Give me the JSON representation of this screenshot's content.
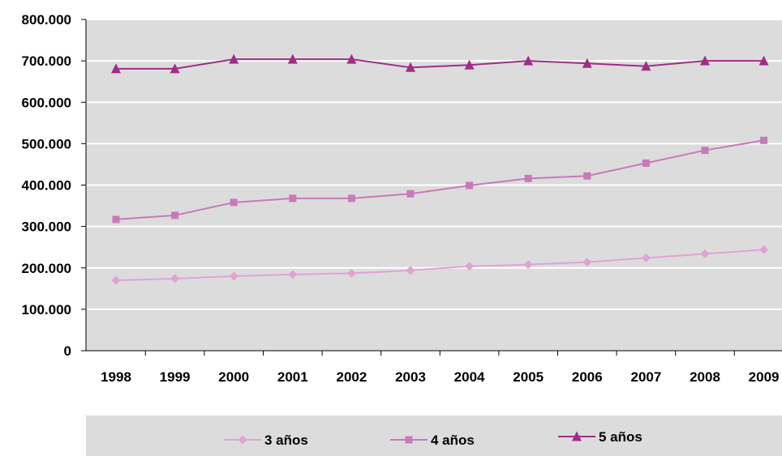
{
  "chart_data": {
    "type": "line",
    "title": "",
    "xlabel": "",
    "ylabel": "",
    "categories": [
      "1998",
      "1999",
      "2000",
      "2001",
      "2002",
      "2003",
      "2004",
      "2005",
      "2006",
      "2007",
      "2008",
      "2009"
    ],
    "ylim": [
      0,
      800000
    ],
    "yticks": [
      0,
      100000,
      200000,
      300000,
      400000,
      500000,
      600000,
      700000,
      800000
    ],
    "ytick_labels": [
      "0",
      "100.000",
      "200.000",
      "300.000",
      "400.000",
      "500.000",
      "600.000",
      "700.000",
      "800.000"
    ],
    "grid": true,
    "legend_position": "bottom",
    "plot_background": "#dcdcdc",
    "series": [
      {
        "name": "3 años",
        "marker": "diamond",
        "color": "#e0a3d4",
        "values": [
          170000,
          174000,
          180000,
          184000,
          187000,
          194000,
          204000,
          208000,
          214000,
          224000,
          234000,
          244000
        ]
      },
      {
        "name": "4 años",
        "marker": "square",
        "color": "#c87ab8",
        "values": [
          317000,
          327000,
          358000,
          368000,
          368000,
          379000,
          399000,
          416000,
          422000,
          453000,
          484000,
          508000
        ]
      },
      {
        "name": "5 años",
        "marker": "triangle",
        "color": "#a02d86",
        "values": [
          681000,
          681000,
          704000,
          704000,
          704000,
          684000,
          690000,
          700000,
          694000,
          687000,
          700000,
          700000
        ]
      }
    ]
  }
}
